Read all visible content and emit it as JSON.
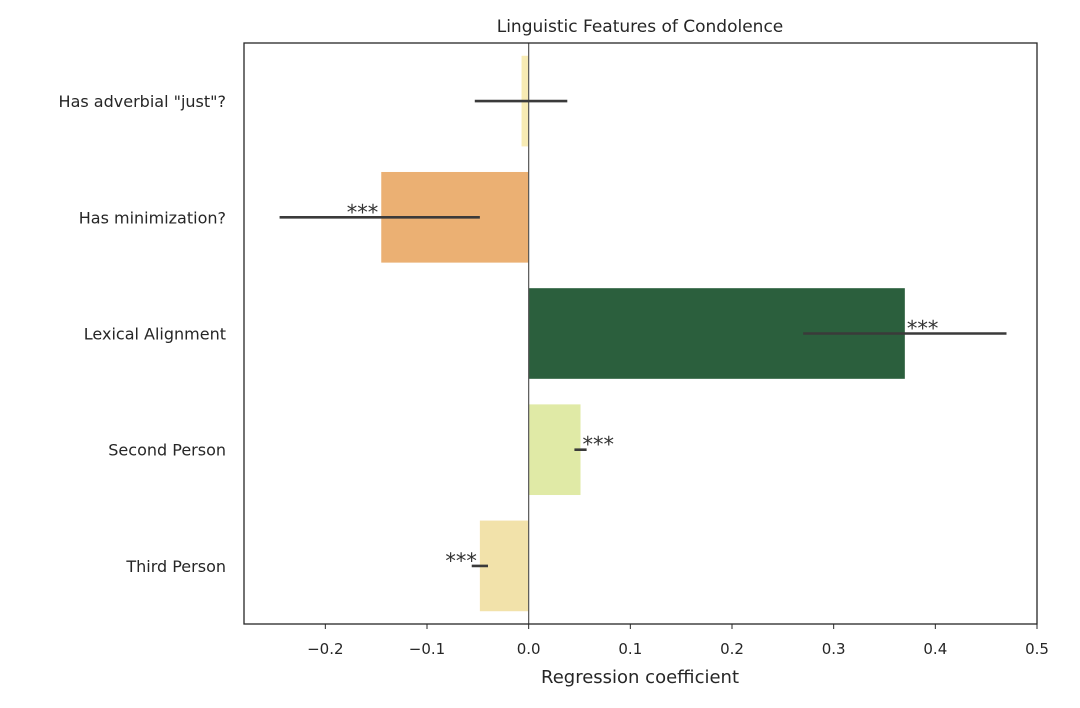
{
  "chart_data": {
    "type": "bar",
    "orientation": "horizontal",
    "title": "Linguistic Features of Condolence",
    "xlabel": "Regression coefficient",
    "ylabel": "",
    "xlim": [
      -0.28,
      0.5
    ],
    "xticks": [
      -0.2,
      -0.1,
      0.0,
      0.1,
      0.2,
      0.3,
      0.4,
      0.5
    ],
    "xtick_labels": [
      "−0.2",
      "−0.1",
      "0.0",
      "0.1",
      "0.2",
      "0.3",
      "0.4",
      "0.5"
    ],
    "grid": false,
    "categories": [
      "Has adverbial \"just\"?",
      "Has minimization?",
      "Lexical Alignment",
      "Second Person",
      "Third Person"
    ],
    "values": [
      -0.007,
      -0.145,
      0.37,
      0.051,
      -0.048
    ],
    "error_low": [
      -0.053,
      -0.245,
      0.27,
      0.045,
      -0.056
    ],
    "error_high": [
      0.038,
      -0.048,
      0.47,
      0.057,
      -0.04
    ],
    "significance": [
      "",
      "***",
      "***",
      "***",
      "***"
    ],
    "colors": [
      "#f7ebb4",
      "#ebb073",
      "#2b5f3d",
      "#e0eaa6",
      "#f2e2aa"
    ]
  }
}
